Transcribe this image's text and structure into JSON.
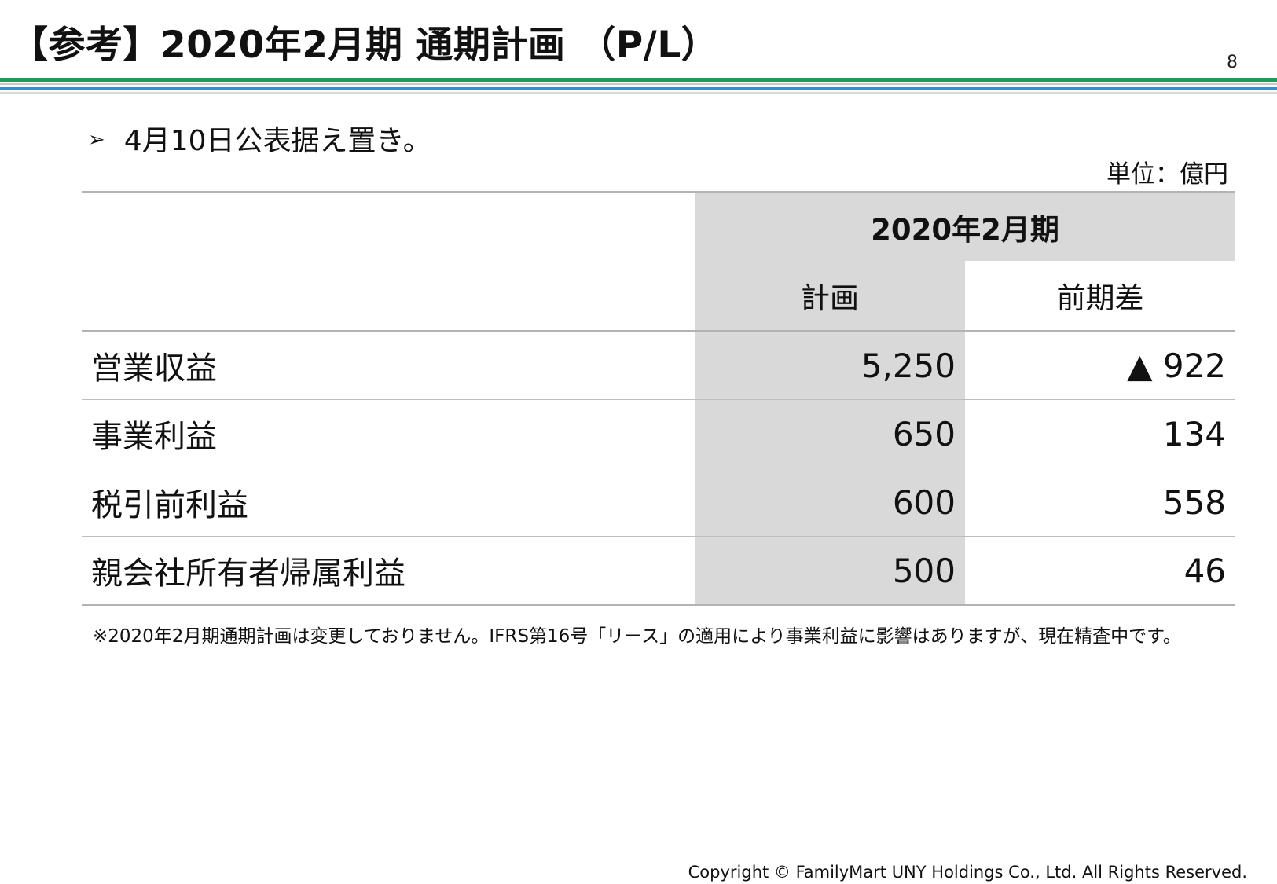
{
  "slide": {
    "title": "【参考】2020年2月期 通期計画 （P/L）",
    "page_number": "8",
    "bullet_marker": "➢",
    "bullet_text": "4月10日公表据え置き。",
    "unit": "単位：億円",
    "footnote": "※2020年2月期通期計画は変更しておりません。IFRS第16号「リース」の適用により事業利益に影響はありますが、現在精査中です。",
    "copyright": "Copyright © FamilyMart UNY Holdings Co., Ltd. All Rights Reserved."
  },
  "table": {
    "period_header": "2020年2月期",
    "column_headers": [
      "計画",
      "前期差"
    ],
    "rows": [
      {
        "label": "営業収益",
        "plan": "5,250",
        "diff": "▲ 922"
      },
      {
        "label": "事業利益",
        "plan": "650",
        "diff": "134"
      },
      {
        "label": "税引前利益",
        "plan": "600",
        "diff": "558"
      },
      {
        "label": "親会社所有者帰属利益",
        "plan": "500",
        "diff": "46"
      }
    ]
  },
  "colors": {
    "header_shade": "#d9d9d9",
    "rule_green": "#1f9a5b",
    "rule_blue": "#3a8fd0"
  }
}
